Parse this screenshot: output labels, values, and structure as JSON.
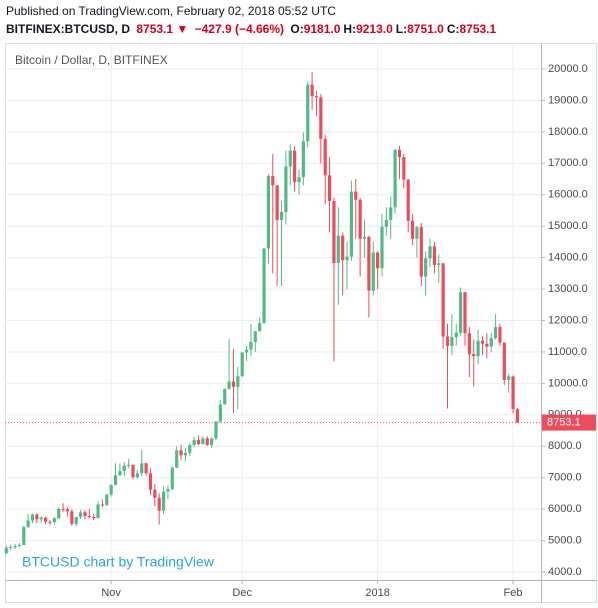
{
  "header": {
    "published": "Published on TradingView.com, February 02, 2018 05:52 UTC",
    "symbol": "BITFINEX:BTCUSD, D",
    "last": "8753.1 ▼",
    "change": "−427.9 (−4.66%)",
    "ohlc": [
      {
        "label": "O:",
        "value": "9181.0"
      },
      {
        "label": "H:",
        "value": "9213.0"
      },
      {
        "label": "L:",
        "value": "8751.0"
      },
      {
        "label": "C:",
        "value": "8753.1"
      }
    ]
  },
  "chart_data": {
    "type": "candlestick",
    "legend": "Bitcoin / Dollar, D, BITFINEX",
    "watermark": "BTCUSD chart by TradingView",
    "up_color": "#53b987",
    "down_color": "#eb4d5c",
    "grid": true,
    "xlim": [
      -0.3,
      122.4
    ],
    "xticks": [
      {
        "value": 24,
        "label": "Nov"
      },
      {
        "value": 54,
        "label": "Dec"
      },
      {
        "value": 85,
        "label": "2018"
      },
      {
        "value": 116,
        "label": "Feb"
      }
    ],
    "ylim": [
      3746,
      20827
    ],
    "yticks": [
      {
        "value": 4000,
        "label": "4000.0"
      },
      {
        "value": 5000,
        "label": "5000.0"
      },
      {
        "value": 6000,
        "label": "6000.0"
      },
      {
        "value": 7000,
        "label": "7000.0"
      },
      {
        "value": 8000,
        "label": "8000.0"
      },
      {
        "value": 9000,
        "label": "9000.0"
      },
      {
        "value": 10000,
        "label": "10000.0"
      },
      {
        "value": 11000,
        "label": "11000.0"
      },
      {
        "value": 12000,
        "label": "12000.0"
      },
      {
        "value": 13000,
        "label": "13000.0"
      },
      {
        "value": 14000,
        "label": "14000.0"
      },
      {
        "value": 15000,
        "label": "15000.0"
      },
      {
        "value": 16000,
        "label": "16000.0"
      },
      {
        "value": 17000,
        "label": "17000.0"
      },
      {
        "value": 18000,
        "label": "18000.0"
      },
      {
        "value": 19000,
        "label": "19000.0"
      },
      {
        "value": 20000,
        "label": "20000.0"
      }
    ],
    "open": [
      4600,
      4770,
      4790,
      4830,
      4860,
      5430,
      5640,
      5830,
      5680,
      5730,
      5600,
      5590,
      5710,
      6010,
      6000,
      5930,
      5530,
      5750,
      5900,
      5780,
      5750,
      5720,
      6150,
      6130,
      6470,
      6770,
      7080,
      7210,
      7380,
      7410,
      7020,
      7140,
      7460,
      7140,
      6620,
      6360,
      5950,
      6560,
      6640,
      7320,
      7870,
      7710,
      7790,
      8040,
      8200,
      8070,
      8250,
      8040,
      8250,
      8790,
      9330,
      9820,
      10060,
      9890,
      10230,
      10980,
      11070,
      11320,
      11660,
      11920,
      14290,
      16600,
      16300,
      15200,
      15450,
      16900,
      17400,
      16400,
      16560,
      17700,
      19500,
      19140,
      19100,
      17780,
      16620,
      15800,
      13830,
      14700,
      13920,
      14030,
      16100,
      15840,
      14600,
      14660,
      12950,
      14160,
      13660,
      14980,
      15200,
      15600,
      17430,
      17200,
      16480,
      15170,
      14600,
      14970,
      13400,
      13980,
      14360,
      13770,
      13820,
      11490,
      11190,
      11470,
      11610,
      12900,
      11600,
      10930,
      10870,
      11360,
      11260,
      11170,
      11440,
      11790,
      11300,
      10110,
      10220,
      9181
    ],
    "high": [
      4830,
      4880,
      4900,
      4920,
      5460,
      5850,
      5860,
      5880,
      5780,
      5760,
      5650,
      5750,
      6070,
      6190,
      6060,
      6000,
      5750,
      5980,
      5970,
      6000,
      5860,
      6250,
      6300,
      6470,
      6800,
      7460,
      7450,
      7500,
      7600,
      7420,
      7250,
      7880,
      7480,
      7310,
      6800,
      6500,
      6720,
      6750,
      7350,
      8000,
      8050,
      7940,
      8100,
      8300,
      8350,
      8320,
      8320,
      8280,
      8800,
      9480,
      9840,
      11400,
      11100,
      10520,
      11000,
      11190,
      11890,
      11660,
      12100,
      14300,
      16650,
      17300,
      16300,
      15800,
      17400,
      17600,
      17550,
      16800,
      17980,
      19600,
      19900,
      19300,
      19200,
      17900,
      17200,
      15900,
      15600,
      14800,
      14500,
      16450,
      16500,
      15900,
      15200,
      14700,
      14500,
      14200,
      15400,
      15600,
      15950,
      17450,
      17550,
      17300,
      16500,
      15400,
      15000,
      15100,
      14200,
      14600,
      14500,
      14100,
      13820,
      11900,
      12200,
      11900,
      13050,
      12900,
      11800,
      11400,
      11700,
      11500,
      11600,
      11600,
      12200,
      11900,
      11300,
      10300,
      10250,
      9213
    ],
    "low": [
      4560,
      4700,
      4730,
      4780,
      4850,
      5400,
      5560,
      5560,
      5570,
      5520,
      5500,
      5510,
      5690,
      5900,
      5760,
      5470,
      5460,
      5690,
      5680,
      5700,
      5650,
      5700,
      6050,
      6100,
      6400,
      6750,
      7050,
      7050,
      7300,
      6950,
      6960,
      7050,
      7070,
      6450,
      6100,
      5510,
      5840,
      6320,
      6610,
      7300,
      7570,
      7520,
      7680,
      7970,
      8030,
      8050,
      8000,
      7950,
      8200,
      8760,
      9320,
      9800,
      9050,
      9170,
      10200,
      10710,
      10870,
      11000,
      11650,
      11900,
      13800,
      13500,
      13100,
      13100,
      15050,
      16300,
      16100,
      16000,
      16300,
      17500,
      18700,
      18500,
      17000,
      15700,
      14800,
      10700,
      12500,
      12800,
      13000,
      13900,
      14600,
      13400,
      14000,
      12100,
      12800,
      13000,
      13400,
      14700,
      14600,
      15400,
      16500,
      16200,
      14800,
      14400,
      14000,
      13100,
      12800,
      13700,
      13500,
      13200,
      11100,
      9200,
      10900,
      11200,
      11500,
      11200,
      10200,
      9900,
      10600,
      10900,
      10800,
      11000,
      11400,
      11200,
      9950,
      9700,
      9050,
      8751
    ],
    "close": [
      4770,
      4790,
      4830,
      4860,
      5430,
      5640,
      5830,
      5680,
      5730,
      5600,
      5590,
      5710,
      6010,
      6000,
      5930,
      5530,
      5750,
      5900,
      5780,
      5750,
      5720,
      6150,
      6130,
      6470,
      6770,
      7080,
      7210,
      7380,
      7410,
      7020,
      7140,
      7460,
      7140,
      6620,
      6360,
      5950,
      6560,
      6640,
      7320,
      7870,
      7710,
      7790,
      8040,
      8200,
      8070,
      8250,
      8040,
      8250,
      8790,
      9330,
      9820,
      10060,
      9890,
      10230,
      10980,
      11070,
      11320,
      11660,
      11920,
      14290,
      16600,
      16300,
      15200,
      15450,
      16900,
      17400,
      16400,
      16560,
      17700,
      19500,
      19140,
      19100,
      17780,
      16620,
      15800,
      13830,
      14700,
      13920,
      14030,
      16100,
      15840,
      14600,
      14660,
      12950,
      14160,
      13660,
      14980,
      15200,
      15600,
      17430,
      17200,
      16480,
      15170,
      14600,
      14970,
      13400,
      13980,
      14360,
      13770,
      13820,
      11490,
      11190,
      11470,
      11610,
      12900,
      11600,
      10930,
      10870,
      11360,
      11260,
      11170,
      11440,
      11790,
      11300,
      10110,
      10220,
      9181,
      8753.1
    ]
  }
}
